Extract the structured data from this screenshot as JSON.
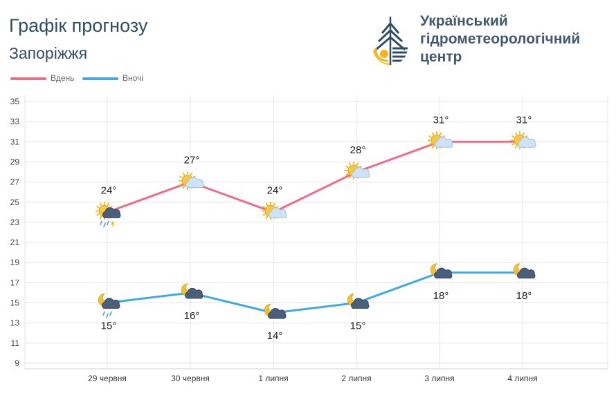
{
  "header": {
    "title": "Графік прогнозу",
    "city": "Запоріжжя"
  },
  "org": {
    "line1": "Український",
    "line2": "гідрометеорологічний",
    "line3": "центр"
  },
  "colors": {
    "day": "#ef6b8a",
    "night": "#3fa9e6",
    "text": "#2f4e66",
    "logo_blue": "#2f4e66",
    "logo_yellow": "#f2b51b"
  },
  "chart_data": {
    "type": "line",
    "categories": [
      "29 червня",
      "30 червня",
      "1 липня",
      "2 липня",
      "3 липня",
      "4 липня"
    ],
    "series": [
      {
        "name": "Вдень",
        "values": [
          24,
          27,
          24,
          28,
          31,
          31
        ],
        "labels": [
          "24°",
          "27°",
          "24°",
          "28°",
          "31°",
          "31°"
        ],
        "icons": [
          "sun-cloud-rain-thunder-icon",
          "sun-cloud-icon",
          "sun-cloud-icon",
          "sun-cloud-icon",
          "sun-cloud-icon",
          "sun-cloud-icon"
        ]
      },
      {
        "name": "Вночі",
        "values": [
          15,
          16,
          14,
          15,
          18,
          18
        ],
        "labels": [
          "15°",
          "16°",
          "14°",
          "15°",
          "18°",
          "18°"
        ],
        "icons": [
          "moon-cloud-rain-icon",
          "moon-cloud-icon",
          "moon-cloud-icon",
          "moon-cloud-icon",
          "moon-cloud-icon",
          "moon-cloud-icon"
        ]
      }
    ],
    "y_ticks": [
      "9",
      "11",
      "13",
      "15",
      "17",
      "19",
      "21",
      "23",
      "25",
      "27",
      "29",
      "31",
      "33",
      "35"
    ],
    "ylim": [
      9,
      35
    ],
    "grid": true,
    "legend_position": "top-left"
  }
}
